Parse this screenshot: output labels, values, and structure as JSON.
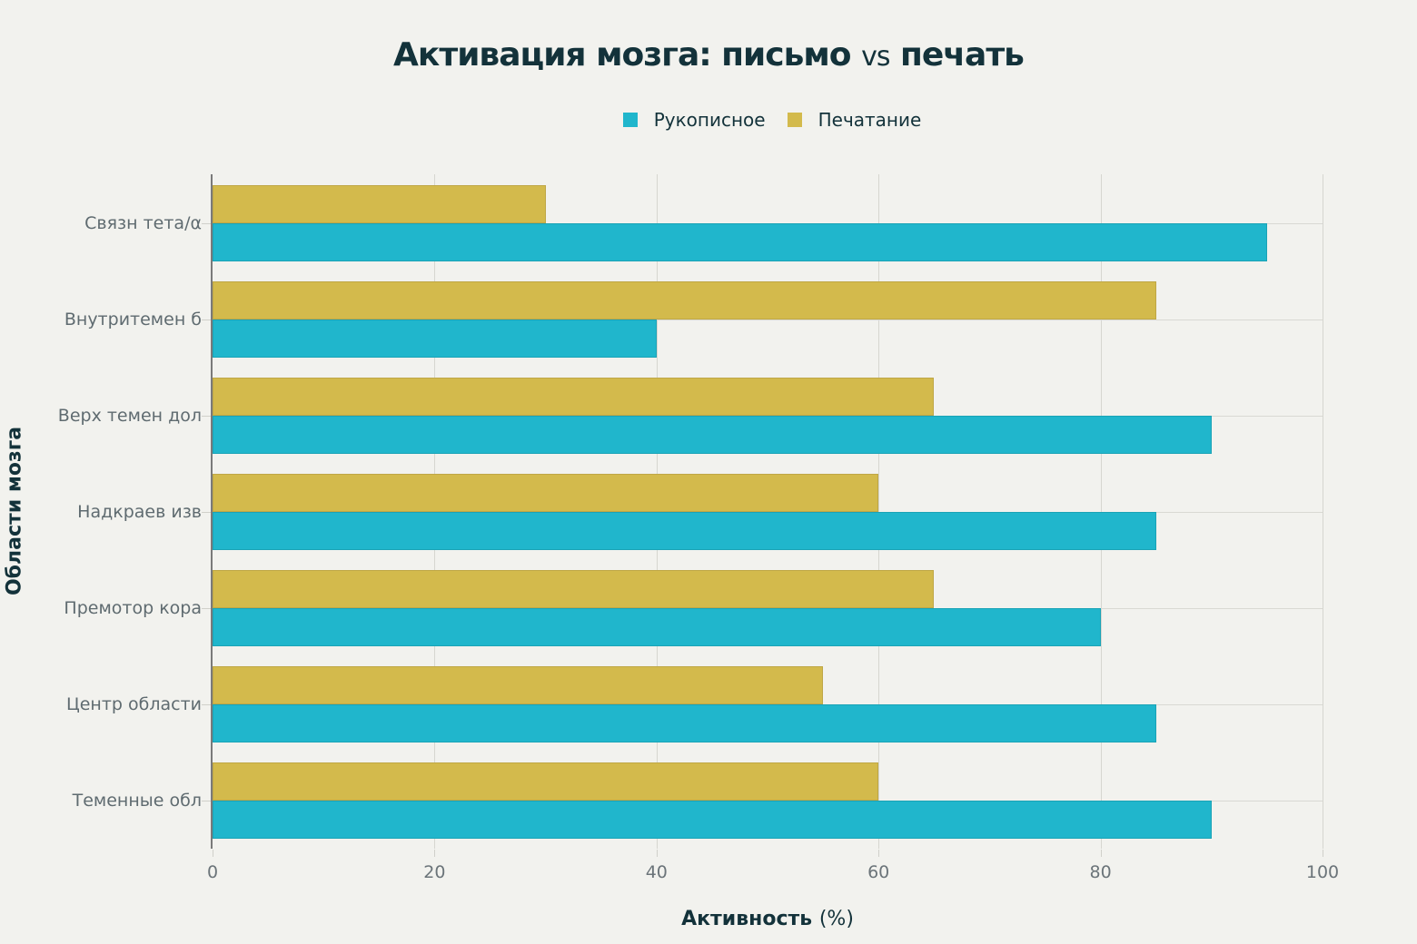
{
  "chart_data": {
    "type": "bar",
    "orientation": "horizontal",
    "title": "Активация мозга: письмо vs печать",
    "title_parts": {
      "a": "Активация мозга: письмо",
      "vs": "vs",
      "b": "печать"
    },
    "xlabel": "Активность (%)",
    "xlabel_parts": {
      "main": "Активность",
      "unit": "(%)"
    },
    "ylabel": "Области мозга",
    "xlim": [
      0,
      100
    ],
    "xticks": [
      0,
      20,
      40,
      60,
      80,
      100
    ],
    "grid": true,
    "legend_position": "top",
    "categories": [
      "Связн тета/α",
      "Внутритемен б",
      "Верх темен дол",
      "Надкраев изв",
      "Премотор кора",
      "Центр области",
      "Теменные обл"
    ],
    "series": [
      {
        "name": "Рукописное",
        "color": "#20b6cc",
        "values": [
          95,
          40,
          90,
          85,
          80,
          85,
          90
        ]
      },
      {
        "name": "Печатание",
        "color": "#d3ba4c",
        "values": [
          30,
          85,
          65,
          60,
          65,
          55,
          60
        ]
      }
    ]
  }
}
